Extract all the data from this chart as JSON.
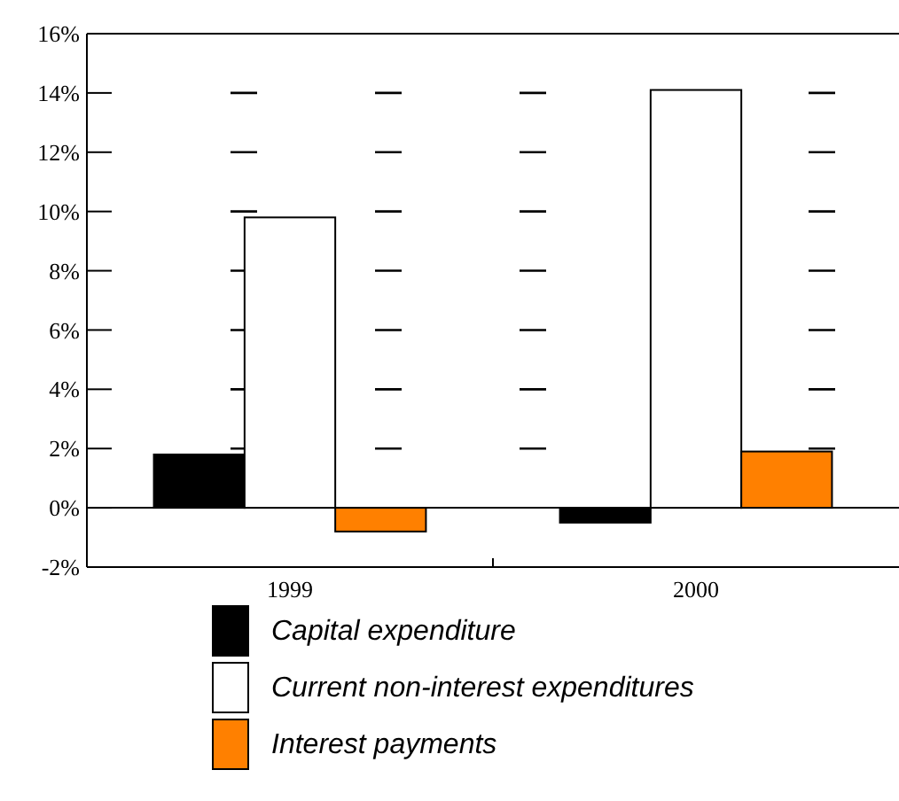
{
  "chart_data": {
    "type": "bar",
    "categories": [
      "1999",
      "2000"
    ],
    "series": [
      {
        "name": "Capital expenditure",
        "color": "#000000",
        "values": [
          1.8,
          -0.5
        ]
      },
      {
        "name": "Current non-interest expenditures",
        "color": "#ffffff",
        "values": [
          9.8,
          14.1
        ]
      },
      {
        "name": "Interest payments",
        "color": "#ff8000",
        "values": [
          -0.8,
          1.9
        ]
      }
    ],
    "ylim": [
      -2,
      16
    ],
    "yticks": [
      {
        "value": -2,
        "label": "-2%"
      },
      {
        "value": 0,
        "label": "0%"
      },
      {
        "value": 2,
        "label": "2%"
      },
      {
        "value": 4,
        "label": "4%"
      },
      {
        "value": 6,
        "label": "6%"
      },
      {
        "value": 8,
        "label": "8%"
      },
      {
        "value": 10,
        "label": "10%"
      },
      {
        "value": 12,
        "label": "12%"
      },
      {
        "value": 14,
        "label": "14%"
      },
      {
        "value": 16,
        "label": "16%"
      }
    ],
    "grid": "y",
    "legend": "bottom"
  }
}
